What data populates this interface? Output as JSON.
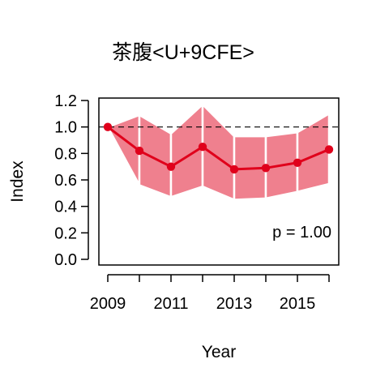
{
  "chart_data": {
    "type": "line",
    "title": "茶腹<U+9CFE>",
    "xlabel": "Year",
    "ylabel": "Index",
    "x": [
      2009,
      2010,
      2011,
      2012,
      2013,
      2014,
      2015,
      2016
    ],
    "xlim": [
      2009,
      2016
    ],
    "ylim": [
      0,
      1.2
    ],
    "x_ticks": [
      "2009",
      "2011",
      "2013",
      "2015"
    ],
    "y_ticks": [
      "0.0",
      "0.2",
      "0.4",
      "0.6",
      "0.8",
      "1.0",
      "1.2"
    ],
    "reference_line": 1.0,
    "grid": false,
    "series": [
      {
        "values": [
          1.0,
          0.82,
          0.7,
          0.85,
          0.68,
          0.69,
          0.73,
          0.83
        ],
        "lower": [
          1.0,
          0.56,
          0.47,
          0.55,
          0.45,
          0.46,
          0.51,
          0.57
        ],
        "upper": [
          1.0,
          1.09,
          0.95,
          1.17,
          0.93,
          0.93,
          0.96,
          1.1
        ],
        "color": "#e0001b",
        "band_color": "#ef808e"
      }
    ],
    "annotation": "p = 1.00"
  }
}
